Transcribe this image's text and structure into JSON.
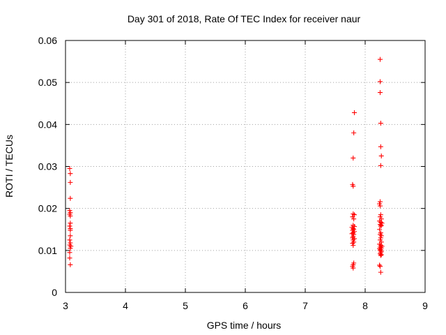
{
  "chart_data": {
    "type": "scatter",
    "title": "Day 301 of 2018, Rate Of TEC Index for receiver naur",
    "xlabel": "GPS time / hours",
    "ylabel": "ROTI / TECUs",
    "xlim": [
      3,
      9
    ],
    "ylim": [
      0,
      0.06
    ],
    "xticks": [
      "3",
      "4",
      "5",
      "6",
      "7",
      "8",
      "9"
    ],
    "yticks": [
      "0",
      "0.01",
      "0.02",
      "0.03",
      "0.04",
      "0.05",
      "0.06"
    ],
    "grid": true,
    "marker": "plus",
    "color": "#ff0000",
    "points": [
      [
        3.07,
        0.0295
      ],
      [
        3.08,
        0.0283
      ],
      [
        3.08,
        0.0262
      ],
      [
        3.08,
        0.0224
      ],
      [
        3.07,
        0.0195
      ],
      [
        3.08,
        0.019
      ],
      [
        3.07,
        0.0186
      ],
      [
        3.08,
        0.0182
      ],
      [
        3.08,
        0.0165
      ],
      [
        3.07,
        0.0158
      ],
      [
        3.08,
        0.0152
      ],
      [
        3.08,
        0.0148
      ],
      [
        3.08,
        0.0135
      ],
      [
        3.07,
        0.0125
      ],
      [
        3.08,
        0.0118
      ],
      [
        3.07,
        0.0113
      ],
      [
        3.09,
        0.011
      ],
      [
        3.08,
        0.0105
      ],
      [
        3.07,
        0.0095
      ],
      [
        3.07,
        0.0082
      ],
      [
        3.08,
        0.0066
      ],
      [
        7.82,
        0.0428
      ],
      [
        7.81,
        0.038
      ],
      [
        7.8,
        0.032
      ],
      [
        7.79,
        0.0257
      ],
      [
        7.8,
        0.0253
      ],
      [
        7.8,
        0.0187
      ],
      [
        7.82,
        0.0185
      ],
      [
        7.79,
        0.018
      ],
      [
        7.81,
        0.0175
      ],
      [
        7.8,
        0.016
      ],
      [
        7.82,
        0.0157
      ],
      [
        7.78,
        0.0155
      ],
      [
        7.8,
        0.0152
      ],
      [
        7.81,
        0.015
      ],
      [
        7.79,
        0.0148
      ],
      [
        7.82,
        0.0145
      ],
      [
        7.8,
        0.0142
      ],
      [
        7.78,
        0.014
      ],
      [
        7.81,
        0.0138
      ],
      [
        7.8,
        0.0133
      ],
      [
        7.79,
        0.013
      ],
      [
        7.82,
        0.0128
      ],
      [
        7.8,
        0.0125
      ],
      [
        7.81,
        0.012
      ],
      [
        7.79,
        0.0117
      ],
      [
        7.8,
        0.0112
      ],
      [
        7.81,
        0.007
      ],
      [
        7.8,
        0.0066
      ],
      [
        7.79,
        0.0062
      ],
      [
        7.8,
        0.0058
      ],
      [
        8.25,
        0.0555
      ],
      [
        8.25,
        0.0502
      ],
      [
        8.25,
        0.0476
      ],
      [
        8.26,
        0.0403
      ],
      [
        8.26,
        0.0347
      ],
      [
        8.27,
        0.0325
      ],
      [
        8.26,
        0.0302
      ],
      [
        8.25,
        0.0216
      ],
      [
        8.24,
        0.0211
      ],
      [
        8.25,
        0.0206
      ],
      [
        8.26,
        0.0185
      ],
      [
        8.25,
        0.018
      ],
      [
        8.27,
        0.0175
      ],
      [
        8.24,
        0.017
      ],
      [
        8.26,
        0.0167
      ],
      [
        8.28,
        0.0165
      ],
      [
        8.25,
        0.0162
      ],
      [
        8.27,
        0.016
      ],
      [
        8.26,
        0.0158
      ],
      [
        8.24,
        0.015
      ],
      [
        8.26,
        0.0142
      ],
      [
        8.25,
        0.0138
      ],
      [
        8.27,
        0.0135
      ],
      [
        8.26,
        0.013
      ],
      [
        8.25,
        0.0125
      ],
      [
        8.27,
        0.012
      ],
      [
        8.24,
        0.0115
      ],
      [
        8.26,
        0.0112
      ],
      [
        8.28,
        0.011
      ],
      [
        8.25,
        0.0108
      ],
      [
        8.27,
        0.0106
      ],
      [
        8.24,
        0.0104
      ],
      [
        8.26,
        0.0102
      ],
      [
        8.25,
        0.01
      ],
      [
        8.27,
        0.0098
      ],
      [
        8.26,
        0.0095
      ],
      [
        8.25,
        0.0092
      ],
      [
        8.27,
        0.009
      ],
      [
        8.26,
        0.0088
      ],
      [
        8.24,
        0.0065
      ],
      [
        8.25,
        0.0062
      ],
      [
        8.26,
        0.0048
      ]
    ]
  }
}
